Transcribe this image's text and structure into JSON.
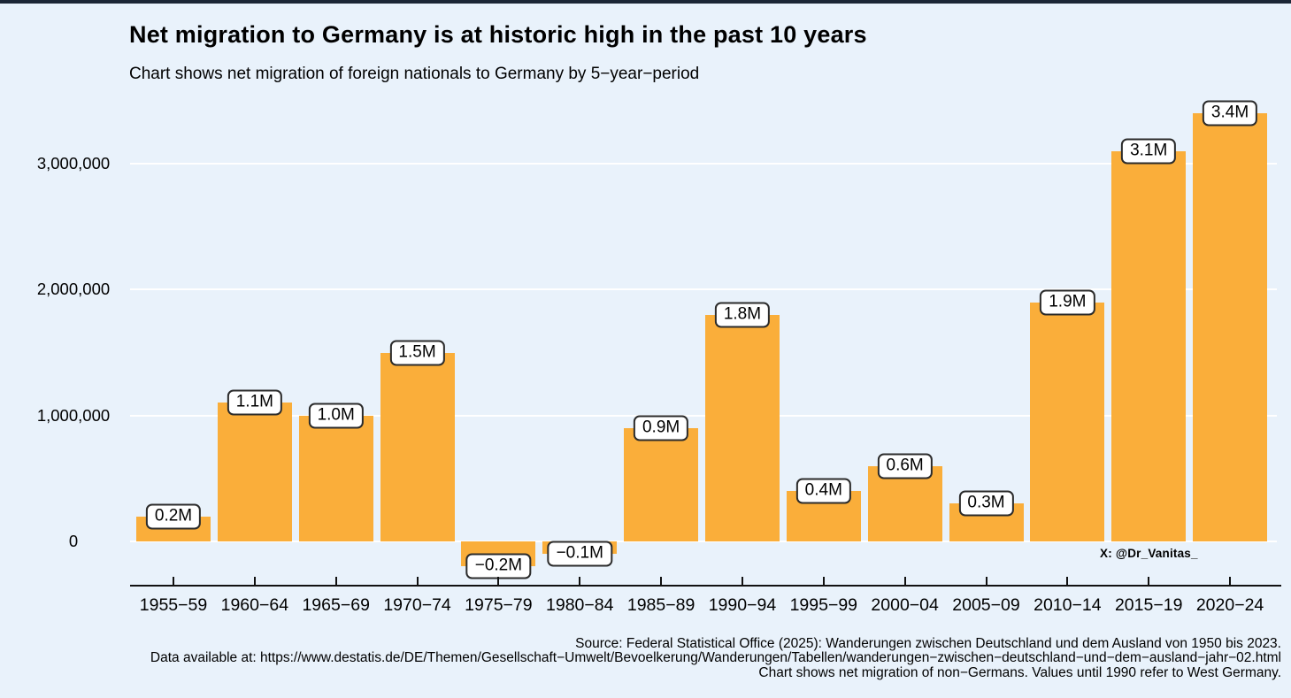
{
  "page": {
    "background_color": "#E9F2FB",
    "top_bar_color": "#1C2636"
  },
  "header": {
    "title": "Net migration to Germany is at historic high in the past 10 years",
    "subtitle": "Chart shows net migration of foreign nationals to Germany by 5−year−period"
  },
  "chart_data": {
    "type": "bar",
    "title": "Net migration to Germany is at historic high in the past 10 years",
    "subtitle": "Chart shows net migration of foreign nationals to Germany by 5−year−period",
    "categories": [
      "1955−59",
      "1960−64",
      "1965−69",
      "1970−74",
      "1975−79",
      "1980−84",
      "1985−89",
      "1990−94",
      "1995−99",
      "2000−04",
      "2005−09",
      "2010−14",
      "2015−19",
      "2020−24"
    ],
    "values": [
      200000,
      1100000,
      1000000,
      1500000,
      -200000,
      -100000,
      900000,
      1800000,
      400000,
      600000,
      300000,
      1900000,
      3100000,
      3400000
    ],
    "bar_labels": [
      "0.2M",
      "1.1M",
      "1.0M",
      "1.5M",
      "−0.2M",
      "−0.1M",
      "0.9M",
      "1.8M",
      "0.4M",
      "0.6M",
      "0.3M",
      "1.9M",
      "3.1M",
      "3.4M"
    ],
    "ytick_values": [
      0,
      1000000,
      2000000,
      3000000
    ],
    "ytick_labels": [
      "0",
      "1,000,000",
      "2,000,000",
      "3,000,000"
    ],
    "ylim": [
      -350000,
      3450000
    ],
    "xlabel": "",
    "ylabel": "",
    "grid": "horizontal-white",
    "legend": "none",
    "bar_color": "#FAAE3A",
    "label_box": {
      "fill": "#FFFFFF",
      "border": "#2B2B2B",
      "text": "#000000"
    }
  },
  "annotations": {
    "credit": "X: @Dr_Vanitas_"
  },
  "footer": {
    "lines": [
      "Source: Federal Statistical Office (2025): Wanderungen zwischen Deutschland und dem Ausland von 1950 bis 2023.",
      "Data available at: https://www.destatis.de/DE/Themen/Gesellschaft−Umwelt/Bevoelkerung/Wanderungen/Tabellen/wanderungen−zwischen−deutschland−und−dem−ausland−jahr−02.html",
      "Chart shows net migration of non−Germans. Values until 1990 refer to West Germany."
    ]
  }
}
